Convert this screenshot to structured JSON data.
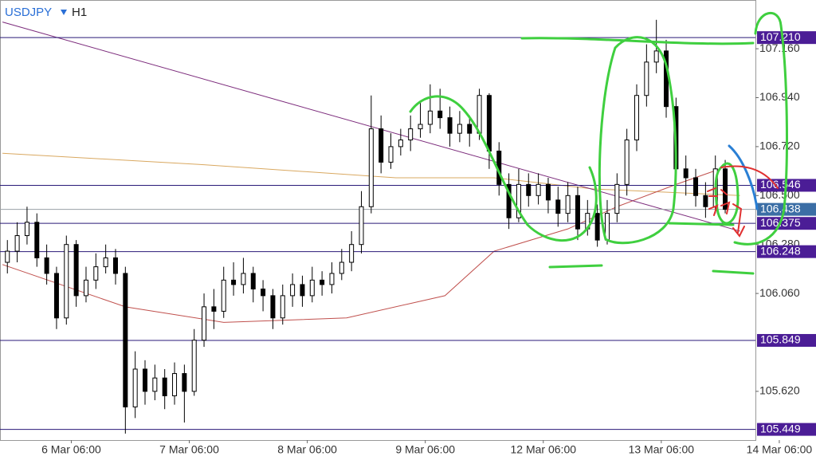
{
  "chart_data": {
    "type": "candlestick",
    "symbol": "USDJPY",
    "timeframe": "H1",
    "xlim": [
      -0.5,
      153.15
    ],
    "ylim": [
      105.401,
      107.379
    ],
    "xticks": [
      {
        "value": 14,
        "label": "6 Mar 06:00"
      },
      {
        "value": 38,
        "label": "7 Mar 06:00"
      },
      {
        "value": 62,
        "label": "8 Mar 06:00"
      },
      {
        "value": 86,
        "label": "9 Mar 06:00"
      },
      {
        "value": 110,
        "label": "12 Mar 06:00"
      },
      {
        "value": 134,
        "label": "13 Mar 06:00"
      },
      {
        "value": 158,
        "label": "14 Mar 06:00"
      }
    ],
    "yticks": [
      {
        "value": 107.16,
        "label": "107.160"
      },
      {
        "value": 106.94,
        "label": "106.940"
      },
      {
        "value": 106.72,
        "label": "106.720"
      },
      {
        "value": 106.5,
        "label": "106.500"
      },
      {
        "value": 106.28,
        "label": "106.280"
      },
      {
        "value": 106.06,
        "label": "106.060"
      },
      {
        "value": 105.62,
        "label": "105.620"
      }
    ],
    "x": [
      1,
      3,
      5,
      7,
      9,
      11,
      13,
      15,
      17,
      19,
      21,
      23,
      25,
      27,
      29,
      31,
      33,
      35,
      37,
      39,
      41,
      43,
      45,
      47,
      49,
      51,
      53,
      55,
      57,
      59,
      61,
      63,
      65,
      67,
      69,
      71,
      73,
      75,
      77,
      79,
      81,
      83,
      85,
      87,
      89,
      91,
      93,
      95,
      97,
      99,
      101,
      103,
      105,
      107,
      109,
      111,
      113,
      115,
      117,
      119,
      121,
      123,
      125,
      127,
      129,
      131,
      133,
      135,
      137,
      139,
      141,
      143,
      145,
      147
    ],
    "open": [
      106.2,
      106.25,
      106.32,
      106.38,
      106.22,
      106.15,
      105.95,
      106.28,
      106.05,
      106.12,
      106.18,
      106.22,
      106.15,
      105.55,
      105.72,
      105.62,
      105.68,
      105.6,
      105.7,
      105.62,
      105.85,
      106.0,
      105.98,
      106.12,
      106.1,
      106.15,
      106.08,
      106.05,
      105.95,
      106.05,
      106.1,
      106.05,
      106.12,
      106.1,
      106.15,
      106.2,
      106.28,
      106.45,
      106.8,
      106.65,
      106.72,
      106.75,
      106.8,
      106.82,
      106.88,
      106.85,
      106.78,
      106.82,
      106.78,
      106.95,
      106.7,
      106.55,
      106.4,
      106.55,
      106.5,
      106.55,
      106.48,
      106.42,
      106.5,
      106.35,
      106.42,
      106.3,
      106.42,
      106.55,
      106.75,
      106.95,
      107.1,
      107.15,
      106.9,
      106.62,
      106.58,
      106.5,
      106.45,
      106.62
    ],
    "high": [
      106.3,
      106.38,
      106.45,
      106.42,
      106.28,
      106.18,
      106.32,
      106.3,
      106.18,
      106.24,
      106.28,
      106.26,
      106.18,
      105.8,
      105.76,
      105.74,
      105.72,
      105.75,
      105.74,
      105.9,
      106.06,
      106.08,
      106.18,
      106.2,
      106.22,
      106.18,
      106.12,
      106.08,
      106.1,
      106.15,
      106.14,
      106.18,
      106.16,
      106.2,
      106.26,
      106.34,
      106.52,
      106.95,
      106.86,
      106.78,
      106.8,
      106.86,
      106.92,
      107.0,
      106.98,
      106.9,
      106.88,
      106.86,
      106.98,
      106.96,
      106.74,
      106.6,
      106.62,
      106.6,
      106.6,
      106.58,
      106.54,
      106.56,
      106.54,
      106.48,
      106.46,
      106.48,
      106.6,
      106.8,
      107.0,
      107.18,
      107.29,
      107.2,
      106.94,
      106.68,
      106.62,
      106.56,
      106.68,
      106.66
    ],
    "low": [
      106.15,
      106.2,
      106.28,
      106.18,
      106.1,
      105.9,
      105.92,
      106.0,
      106.02,
      106.08,
      106.15,
      106.1,
      105.43,
      105.5,
      105.56,
      105.58,
      105.54,
      105.56,
      105.48,
      105.6,
      105.82,
      105.9,
      105.95,
      106.05,
      106.06,
      106.02,
      105.98,
      105.9,
      105.92,
      106.0,
      106.0,
      106.02,
      106.05,
      106.06,
      106.12,
      106.16,
      106.24,
      106.42,
      106.6,
      106.62,
      106.68,
      106.7,
      106.76,
      106.78,
      106.8,
      106.72,
      106.74,
      106.72,
      106.75,
      106.62,
      106.5,
      106.35,
      106.38,
      106.45,
      106.46,
      106.42,
      106.36,
      106.38,
      106.3,
      106.32,
      106.27,
      106.28,
      106.38,
      106.5,
      106.7,
      106.9,
      107.05,
      106.85,
      106.55,
      106.5,
      106.45,
      106.4,
      106.42,
      106.42
    ],
    "close": [
      106.25,
      106.32,
      106.38,
      106.22,
      106.15,
      105.95,
      106.28,
      106.05,
      106.12,
      106.18,
      106.22,
      106.15,
      105.55,
      105.72,
      105.62,
      105.68,
      105.6,
      105.7,
      105.62,
      105.85,
      106.0,
      105.98,
      106.12,
      106.1,
      106.15,
      106.08,
      106.05,
      105.95,
      106.05,
      106.1,
      106.05,
      106.12,
      106.1,
      106.15,
      106.2,
      106.28,
      106.45,
      106.8,
      106.65,
      106.72,
      106.75,
      106.8,
      106.82,
      106.88,
      106.85,
      106.78,
      106.82,
      106.78,
      106.95,
      106.7,
      106.55,
      106.4,
      106.55,
      106.5,
      106.55,
      106.48,
      106.42,
      106.5,
      106.35,
      106.42,
      106.3,
      106.42,
      106.55,
      106.75,
      106.95,
      107.1,
      107.15,
      106.9,
      106.62,
      106.58,
      106.5,
      106.45,
      106.62,
      106.438
    ],
    "moving_averages": [
      {
        "color": "#d9a860",
        "x": [
          0,
          40,
          80,
          100,
          120,
          150
        ],
        "values": [
          106.69,
          106.64,
          106.58,
          106.58,
          106.53,
          106.5
        ]
      },
      {
        "color": "#c0504d",
        "x": [
          0,
          25,
          45,
          70,
          90,
          100,
          115,
          125,
          137,
          146
        ],
        "values": [
          106.19,
          106.0,
          105.93,
          105.95,
          106.05,
          106.25,
          106.35,
          106.45,
          106.55,
          106.62
        ]
      }
    ],
    "trendline": {
      "color": "#7b2a7b",
      "x": [
        0,
        150
      ],
      "values": [
        107.28,
        106.34
      ]
    },
    "levels": [
      {
        "value": 107.21,
        "label": "107.210"
      },
      {
        "value": 106.546,
        "label": "106.546"
      },
      {
        "value": 106.375,
        "label": "106.375"
      },
      {
        "value": 106.248,
        "label": "106.248"
      },
      {
        "value": 105.849,
        "label": "105.849"
      },
      {
        "value": 105.449,
        "label": "105.449"
      }
    ],
    "current_price": 106.438
  }
}
